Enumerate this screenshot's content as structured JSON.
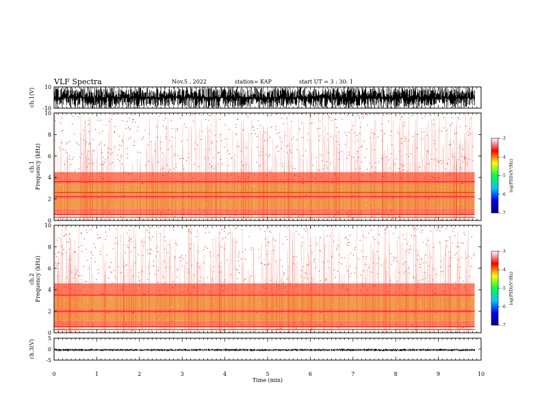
{
  "header": {
    "title": "VLF Spectra",
    "date": "Nov.5 , 2022",
    "station": "station= KAP",
    "start": "start UT = 3 : 30: 1"
  },
  "chart_data": [
    {
      "type": "line",
      "panel": "waveform-ch1",
      "ylabel": "ch.1(V)",
      "ylim": [
        -10,
        10
      ],
      "yticks": [
        "10",
        "-10"
      ],
      "xlim": [
        0,
        10
      ],
      "data_extent_x": [
        0,
        9.85
      ],
      "envelope_y": [
        -10,
        10
      ],
      "color": "#000000"
    },
    {
      "type": "heatmap",
      "panel": "spectrogram-ch1",
      "ylabel": "ch.1\nFrequency (kHz)",
      "ylim": [
        0,
        10
      ],
      "yticks": [
        "0",
        "2",
        "4",
        "6",
        "8",
        "10"
      ],
      "xlim": [
        0,
        10
      ],
      "data_extent_x": [
        0,
        9.85
      ],
      "bands_khz": [
        {
          "from": 0,
          "to": 0.5,
          "level": -3.6
        },
        {
          "from": 0.5,
          "to": 1.1,
          "level": -4.1
        },
        {
          "from": 1.1,
          "to": 2.0,
          "level": -4.9
        },
        {
          "from": 2.0,
          "to": 2.4,
          "level": -4.2
        },
        {
          "from": 2.4,
          "to": 3.4,
          "level": -4.9
        },
        {
          "from": 3.4,
          "to": 4.5,
          "level": -4.1
        },
        {
          "from": 4.5,
          "to": 10,
          "level": -3.5
        }
      ],
      "lines_khz": [
        0.3,
        0.55,
        2.2,
        2.6,
        3.6
      ]
    },
    {
      "type": "heatmap",
      "panel": "spectrogram-ch2",
      "ylabel": "ch.2\nFrequency (kHz)",
      "ylim": [
        0,
        10
      ],
      "yticks": [
        "0",
        "2",
        "4",
        "6",
        "8",
        "10"
      ],
      "xlim": [
        0,
        10
      ],
      "data_extent_x": [
        0,
        9.85
      ],
      "bands_khz": [
        {
          "from": 0,
          "to": 0.5,
          "level": -3.6
        },
        {
          "from": 0.5,
          "to": 1.1,
          "level": -4.1
        },
        {
          "from": 1.1,
          "to": 1.8,
          "level": -5.0
        },
        {
          "from": 1.8,
          "to": 2.2,
          "level": -4.2
        },
        {
          "from": 2.2,
          "to": 3.4,
          "level": -4.8
        },
        {
          "from": 3.4,
          "to": 4.6,
          "level": -4.0
        },
        {
          "from": 4.6,
          "to": 10,
          "level": -3.4
        }
      ],
      "lines_khz": [
        0.3,
        0.55,
        2.0,
        3.5
      ]
    },
    {
      "type": "line",
      "panel": "waveform-ch3",
      "ylabel": "ch.3(V)",
      "ylim": [
        -5,
        5
      ],
      "yticks": [
        "5",
        "0",
        "-5"
      ],
      "xlim": [
        0,
        10
      ],
      "data_extent_x": [
        0,
        9.85
      ],
      "envelope_y": [
        -0.9,
        0.2
      ],
      "color": "#000000"
    }
  ],
  "colorbar": {
    "label": "log(PSD)(V²/Hz)",
    "range": [
      -7,
      -3
    ],
    "ticks": [
      "-3",
      "-4",
      "-5",
      "-6",
      "-7"
    ],
    "colors": [
      "#000080",
      "#0000ff",
      "#00c8ff",
      "#00ff40",
      "#ffff00",
      "#ff0000",
      "#ffffff"
    ]
  },
  "xaxis": {
    "label": "Time (min)",
    "ticks": [
      "0",
      "1",
      "2",
      "3",
      "4",
      "5",
      "6",
      "7",
      "8",
      "9",
      "10"
    ]
  }
}
